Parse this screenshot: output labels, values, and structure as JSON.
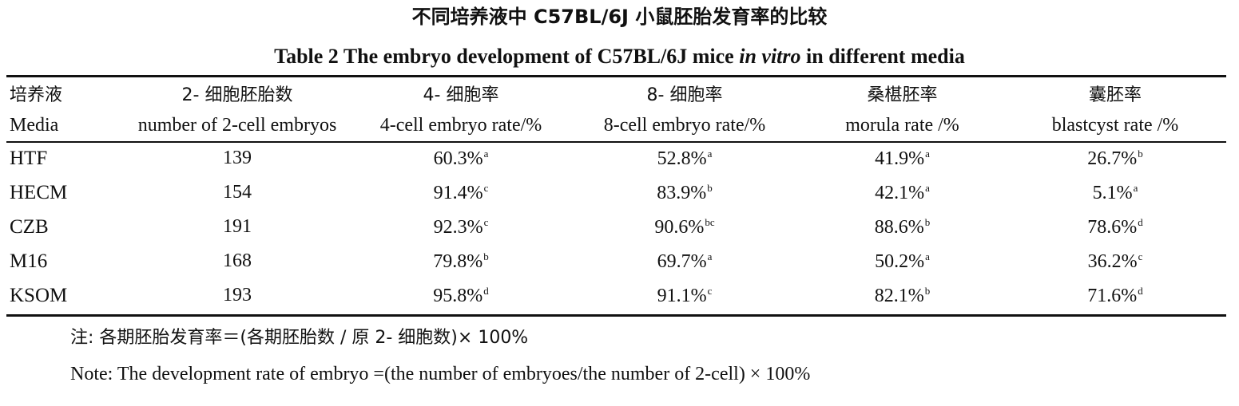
{
  "title_cn": "不同培养液中 C57BL/6J 小鼠胚胎发育率的比较",
  "title_en": {
    "prefix": "Table 2  The embryo development of C57BL/6J mice ",
    "italic": "in vitro",
    "suffix": " in different media"
  },
  "table": {
    "headers_cn": [
      "培养液",
      "2- 细胞胚胎数",
      "4- 细胞率",
      "8- 细胞率",
      "桑椹胚率",
      "囊胚率"
    ],
    "headers_en": [
      "Media",
      "number of 2-cell embryos",
      "4-cell embryo rate/%",
      "8-cell embryo rate/%",
      "morula rate /%",
      "blastcyst rate /%"
    ],
    "rows": [
      {
        "media": "HTF",
        "count": "139",
        "c4": "60.3%",
        "c4s": "a",
        "c8": "52.8%",
        "c8s": "a",
        "mor": "41.9%",
        "mors": "a",
        "bla": "26.7%",
        "blas": "b"
      },
      {
        "media": "HECM",
        "count": "154",
        "c4": "91.4%",
        "c4s": "c",
        "c8": "83.9%",
        "c8s": "b",
        "mor": "42.1%",
        "mors": "a",
        "bla": "5.1%",
        "blas": "a"
      },
      {
        "media": "CZB",
        "count": "191",
        "c4": "92.3%",
        "c4s": "c",
        "c8": "90.6%",
        "c8s": "bc",
        "mor": "88.6%",
        "mors": "b",
        "bla": "78.6%",
        "blas": "d"
      },
      {
        "media": "M16",
        "count": "168",
        "c4": "79.8%",
        "c4s": "b",
        "c8": "69.7%",
        "c8s": "a",
        "mor": "50.2%",
        "mors": "a",
        "bla": "36.2%",
        "blas": "c"
      },
      {
        "media": "KSOM",
        "count": "193",
        "c4": "95.8%",
        "c4s": "d",
        "c8": "91.1%",
        "c8s": "c",
        "mor": "82.1%",
        "mors": "b",
        "bla": "71.6%",
        "blas": "d"
      }
    ]
  },
  "note_cn": "注: 各期胚胎发育率＝(各期胚胎数 / 原 2- 细胞数)× 100%",
  "note_en": "Note: The development rate of embryo =(the number of embryoes/the number of 2-cell) × 100%"
}
